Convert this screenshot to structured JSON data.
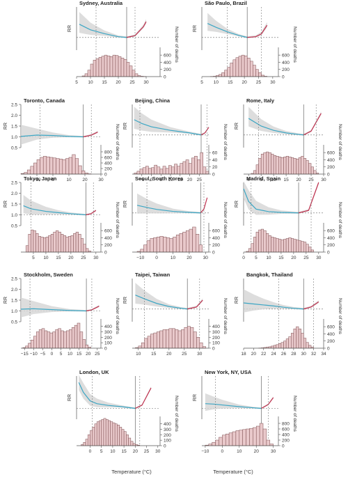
{
  "figure": {
    "rr_ticks": [
      "2.5",
      "2.0",
      "1.5",
      "1.0",
      "0.5"
    ],
    "rr_label": "RR",
    "deaths_label": "Number of deaths",
    "x_label": "Temperature (°C)"
  },
  "colors": {
    "cold_curve": "#3ba6c4",
    "heat_curve": "#c0304e",
    "ci_band": "#d4d4d4",
    "hist_fill": "#e9c9cb",
    "hist_stroke": "#7a4a4d",
    "axis": "#555555"
  },
  "chart_data": [
    {
      "type": "line",
      "title": "Sydney, Australia",
      "xlim": [
        5,
        35
      ],
      "xticks": [
        5,
        10,
        15,
        20,
        25,
        30
      ],
      "mmt": 23,
      "p_low": 12,
      "p_high": 26,
      "ymax_rr": 2.2,
      "rr_ticks_shown": false,
      "curve": [
        [
          6,
          1.52
        ],
        [
          10,
          1.3
        ],
        [
          15,
          1.15
        ],
        [
          20,
          1.03
        ],
        [
          23,
          1.0
        ],
        [
          26,
          1.07
        ],
        [
          29,
          1.42
        ],
        [
          30,
          1.62
        ]
      ],
      "hist": {
        "start": 7,
        "width": 1,
        "values": [
          20,
          80,
          180,
          350,
          460,
          500,
          540,
          570,
          600,
          580,
          560,
          600,
          590,
          560,
          520,
          480,
          400,
          300,
          180,
          80,
          30,
          10,
          5
        ]
      },
      "hist_ticks": [
        0,
        200,
        400,
        600
      ],
      "hist_max": 700
    },
    {
      "type": "line",
      "title": "São Paulo, Brazil",
      "xlim": [
        5,
        32
      ],
      "xticks": [
        5,
        10,
        15,
        20,
        25,
        30
      ],
      "mmt": 21,
      "p_low": 14,
      "p_high": 26,
      "ymax_rr": 2.2,
      "rr_ticks_shown": false,
      "curve": [
        [
          7,
          1.55
        ],
        [
          10,
          1.4
        ],
        [
          14,
          1.22
        ],
        [
          18,
          1.08
        ],
        [
          21,
          1.0
        ],
        [
          24,
          1.03
        ],
        [
          26,
          1.14
        ],
        [
          28,
          1.48
        ]
      ],
      "hist": {
        "start": 8,
        "width": 1,
        "values": [
          5,
          10,
          30,
          60,
          110,
          180,
          260,
          380,
          470,
          530,
          570,
          600,
          580,
          520,
          430,
          320,
          200,
          110,
          40,
          10
        ]
      },
      "hist_ticks": [
        0,
        200,
        400,
        600
      ],
      "hist_max": 700
    },
    {
      "type": "line",
      "title": "Toronto, Canada",
      "xlim": [
        -20,
        30
      ],
      "xticks": [
        -10,
        0,
        10,
        20,
        30
      ],
      "mmt": 19,
      "p_low": -8,
      "p_high": 24,
      "ymax_rr": 2.5,
      "rr_ticks_shown": true,
      "curve": [
        [
          -20,
          1.02
        ],
        [
          -10,
          1.08
        ],
        [
          0,
          1.06
        ],
        [
          10,
          1.02
        ],
        [
          19,
          1.0
        ],
        [
          24,
          1.08
        ],
        [
          28,
          1.22
        ]
      ],
      "hist": {
        "start": -20,
        "width": 2,
        "values": [
          20,
          60,
          150,
          280,
          400,
          520,
          600,
          640,
          620,
          600,
          580,
          560,
          540,
          520,
          560,
          600,
          700,
          560,
          300,
          120,
          40,
          10
        ]
      },
      "hist_ticks": [
        0,
        200,
        400,
        600,
        800
      ],
      "hist_max": 900
    },
    {
      "type": "line",
      "title": "Beijing, China",
      "xlim": [
        -10,
        30
      ],
      "xticks": [
        -5,
        0,
        5,
        10,
        15,
        20,
        25
      ],
      "mmt": 26,
      "p_low": -6,
      "p_high": 29,
      "ymax_rr": 2.2,
      "rr_ticks_shown": false,
      "curve": [
        [
          -9,
          1.6
        ],
        [
          -5,
          1.45
        ],
        [
          0,
          1.32
        ],
        [
          10,
          1.18
        ],
        [
          20,
          1.08
        ],
        [
          26,
          1.0
        ],
        [
          28,
          1.08
        ],
        [
          30,
          1.3
        ]
      ],
      "hist": {
        "start": -9,
        "width": 1.5,
        "values": [
          3,
          8,
          14,
          18,
          22,
          16,
          18,
          25,
          20,
          14,
          22,
          16,
          24,
          20,
          28,
          22,
          30,
          35,
          40,
          30,
          45,
          50,
          40,
          60,
          20,
          8
        ]
      },
      "hist_ticks": [
        0,
        20,
        40,
        60
      ],
      "hist_max": 70
    },
    {
      "type": "line",
      "title": "Rome, Italy",
      "xlim": [
        -2,
        30
      ],
      "xticks": [
        0,
        5,
        10,
        15,
        20,
        25,
        30
      ],
      "mmt": 22,
      "p_low": 4,
      "p_high": 27,
      "ymax_rr": 2.2,
      "rr_ticks_shown": false,
      "curve": [
        [
          0,
          1.65
        ],
        [
          5,
          1.35
        ],
        [
          10,
          1.18
        ],
        [
          15,
          1.08
        ],
        [
          20,
          1.02
        ],
        [
          22,
          1.0
        ],
        [
          25,
          1.15
        ],
        [
          29,
          1.85
        ]
      ],
      "hist": {
        "start": 1,
        "width": 1,
        "values": [
          20,
          100,
          260,
          440,
          560,
          600,
          620,
          600,
          560,
          520,
          500,
          480,
          460,
          480,
          500,
          480,
          460,
          440,
          420,
          460,
          500,
          440,
          380,
          300,
          200,
          100,
          30
        ]
      },
      "hist_ticks": [
        0,
        200,
        400,
        600
      ],
      "hist_max": 700
    },
    {
      "type": "line",
      "title": "Tokyo, Japan",
      "xlim": [
        0,
        32
      ],
      "xticks": [
        5,
        10,
        15,
        20,
        25,
        30
      ],
      "mmt": 26,
      "p_low": 4,
      "p_high": 29,
      "ymax_rr": 2.5,
      "rr_ticks_shown": true,
      "curve": [
        [
          1,
          1.42
        ],
        [
          4,
          1.28
        ],
        [
          10,
          1.16
        ],
        [
          15,
          1.1
        ],
        [
          20,
          1.05
        ],
        [
          26,
          1.0
        ],
        [
          28,
          1.05
        ],
        [
          30,
          1.2
        ]
      ],
      "hist": {
        "start": 2,
        "width": 1,
        "values": [
          180,
          500,
          620,
          600,
          520,
          440,
          420,
          400,
          420,
          460,
          500,
          560,
          600,
          560,
          500,
          460,
          420,
          440,
          460,
          520,
          560,
          500,
          380,
          220,
          100,
          30
        ]
      },
      "hist_ticks": [
        0,
        200,
        400,
        600
      ],
      "hist_max": 700
    },
    {
      "type": "line",
      "title": "Seoul, South Korea",
      "xlim": [
        -15,
        32
      ],
      "xticks": [
        -10,
        0,
        10,
        20,
        30
      ],
      "mmt": 27,
      "p_low": -6,
      "p_high": 29,
      "ymax_rr": 2.2,
      "rr_ticks_shown": false,
      "curve": [
        [
          -12,
          1.3
        ],
        [
          -5,
          1.2
        ],
        [
          0,
          1.14
        ],
        [
          10,
          1.06
        ],
        [
          20,
          1.02
        ],
        [
          27,
          1.0
        ],
        [
          29,
          1.15
        ],
        [
          31,
          1.6
        ]
      ],
      "hist": {
        "start": -12,
        "width": 2,
        "values": [
          20,
          80,
          200,
          320,
          380,
          400,
          420,
          440,
          420,
          400,
          380,
          420,
          480,
          520,
          560,
          600,
          640,
          700,
          500,
          200
        ]
      },
      "hist_ticks": [
        0,
        200,
        400,
        600
      ],
      "hist_max": 700
    },
    {
      "type": "line",
      "title": "Madrid, Spain",
      "xlim": [
        0,
        32
      ],
      "xticks": [
        0,
        5,
        10,
        15,
        20,
        25,
        30
      ],
      "mmt": 22,
      "p_low": 3,
      "p_high": 27,
      "ymax_rr": 2.2,
      "rr_ticks_shown": false,
      "curve": [
        [
          0,
          1.95
        ],
        [
          2,
          1.45
        ],
        [
          5,
          1.15
        ],
        [
          10,
          1.05
        ],
        [
          15,
          1.02
        ],
        [
          22,
          1.0
        ],
        [
          26,
          1.1
        ],
        [
          30,
          2.2
        ]
      ],
      "hist": {
        "start": 1,
        "width": 1,
        "values": [
          20,
          100,
          240,
          420,
          560,
          620,
          640,
          600,
          520,
          460,
          420,
          400,
          380,
          360,
          340,
          360,
          380,
          400,
          380,
          360,
          340,
          320,
          300,
          280,
          220,
          140,
          60
        ]
      },
      "hist_ticks": [
        0,
        200,
        400,
        600
      ],
      "hist_max": 700
    },
    {
      "type": "line",
      "title": "Stockholm, Sweden",
      "xlim": [
        -17,
        27
      ],
      "xticks": [
        -15,
        -10,
        -5,
        0,
        5,
        10,
        15,
        20,
        25
      ],
      "mmt": 19,
      "p_low": -12,
      "p_high": 22,
      "ymax_rr": 2.5,
      "rr_ticks_shown": true,
      "curve": [
        [
          -17,
          1.08
        ],
        [
          -10,
          1.1
        ],
        [
          0,
          1.06
        ],
        [
          10,
          1.02
        ],
        [
          19,
          1.0
        ],
        [
          22,
          1.05
        ],
        [
          26,
          1.22
        ]
      ],
      "hist": {
        "start": -16,
        "width": 1.5,
        "values": [
          10,
          40,
          90,
          150,
          220,
          300,
          340,
          360,
          320,
          300,
          280,
          300,
          340,
          360,
          320,
          300,
          320,
          340,
          380,
          420,
          460,
          300,
          160,
          60,
          20
        ]
      },
      "hist_ticks": [
        0,
        100,
        200,
        300,
        400
      ],
      "hist_max": 460
    },
    {
      "type": "line",
      "title": "Taipei, Taiwan",
      "xlim": [
        8,
        33
      ],
      "xticks": [
        10,
        15,
        20,
        25,
        30
      ],
      "mmt": 26,
      "p_low": 12,
      "p_high": 30,
      "ymax_rr": 2.2,
      "rr_ticks_shown": false,
      "curve": [
        [
          9,
          1.55
        ],
        [
          12,
          1.4
        ],
        [
          16,
          1.22
        ],
        [
          20,
          1.1
        ],
        [
          24,
          1.03
        ],
        [
          26,
          1.0
        ],
        [
          29,
          1.08
        ],
        [
          31,
          1.35
        ]
      ],
      "hist": {
        "start": 9,
        "width": 1,
        "values": [
          10,
          40,
          100,
          180,
          220,
          260,
          280,
          300,
          320,
          340,
          340,
          360,
          360,
          340,
          320,
          340,
          380,
          400,
          380,
          300,
          200,
          100,
          30
        ]
      },
      "hist_ticks": [
        0,
        100,
        200,
        300,
        400
      ],
      "hist_max": 460
    },
    {
      "type": "line",
      "title": "Bangkok, Thailand",
      "xlim": [
        18,
        34
      ],
      "xticks": [
        18,
        20,
        22,
        24,
        26,
        28,
        30,
        32,
        34
      ],
      "mmt": 30,
      "p_low": 25,
      "p_high": 32,
      "ymax_rr": 2.2,
      "rr_ticks_shown": false,
      "curve": [
        [
          18,
          1.24
        ],
        [
          20,
          1.2
        ],
        [
          22,
          1.16
        ],
        [
          24,
          1.12
        ],
        [
          26,
          1.07
        ],
        [
          28,
          1.03
        ],
        [
          30,
          1.0
        ],
        [
          31.5,
          1.08
        ],
        [
          33,
          1.28
        ]
      ],
      "hist": {
        "start": 21,
        "width": 0.5,
        "values": [
          5,
          10,
          20,
          30,
          40,
          60,
          80,
          100,
          130,
          160,
          200,
          260,
          320,
          420,
          540,
          600,
          540,
          420,
          280,
          160,
          80,
          30
        ]
      },
      "hist_ticks": [
        0,
        200,
        400,
        600
      ],
      "hist_max": 700
    },
    {
      "type": "line",
      "title": "London, UK",
      "xlim": [
        -6,
        31
      ],
      "xticks": [
        0,
        5,
        10,
        15,
        20,
        25,
        30
      ],
      "mmt": 20,
      "p_low": 1,
      "p_high": 22,
      "ymax_rr": 2.5,
      "rr_ticks_shown": false,
      "curve": [
        [
          -5,
          2.2
        ],
        [
          -3,
          1.75
        ],
        [
          0,
          1.35
        ],
        [
          3,
          1.22
        ],
        [
          8,
          1.14
        ],
        [
          14,
          1.08
        ],
        [
          20,
          1.0
        ],
        [
          23,
          1.15
        ],
        [
          27,
          1.95
        ]
      ],
      "hist": {
        "start": -4,
        "width": 1,
        "values": [
          20,
          60,
          120,
          200,
          280,
          340,
          400,
          440,
          460,
          480,
          500,
          480,
          460,
          440,
          420,
          400,
          380,
          340,
          300,
          260,
          200,
          140,
          80,
          40,
          20,
          10
        ]
      },
      "hist_ticks": [
        0,
        100,
        200,
        300,
        400
      ],
      "hist_max": 460
    },
    {
      "type": "line",
      "title": "New York, NY, USA",
      "xlim": [
        -12,
        33
      ],
      "xticks": [
        -10,
        0,
        10,
        20,
        30
      ],
      "mmt": 23,
      "p_low": -4,
      "p_high": 27,
      "ymax_rr": 2.5,
      "rr_ticks_shown": false,
      "curve": [
        [
          -10,
          1.22
        ],
        [
          -5,
          1.2
        ],
        [
          0,
          1.16
        ],
        [
          10,
          1.08
        ],
        [
          18,
          1.03
        ],
        [
          23,
          1.0
        ],
        [
          27,
          1.18
        ],
        [
          30,
          1.5
        ]
      ],
      "hist": {
        "start": -10,
        "width": 2,
        "values": [
          20,
          60,
          120,
          200,
          300,
          380,
          420,
          460,
          500,
          540,
          560,
          580,
          600,
          620,
          650,
          700,
          800,
          600,
          200,
          60
        ]
      },
      "hist_ticks": [
        0,
        200,
        400,
        600,
        800
      ],
      "hist_max": 900
    }
  ]
}
